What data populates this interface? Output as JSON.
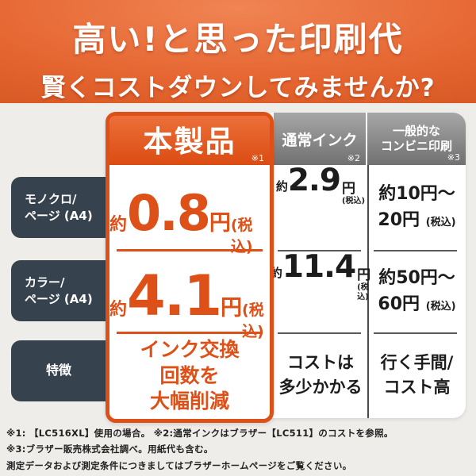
{
  "banner": {
    "line1": "高い!と思った印刷代",
    "line2_prefix": "賢く",
    "line2_emphasis": "コストダウン",
    "line2_suffix": "してみませんか?"
  },
  "table": {
    "columns": [
      {
        "label": "本製品",
        "note": "※1"
      },
      {
        "label": "通常インク",
        "note": "※2"
      },
      {
        "label_line1": "一般的な",
        "label_line2": "コンビニ印刷",
        "note": "※3"
      }
    ],
    "row_labels": {
      "mono": [
        "モノクロ/",
        "ページ (A4)"
      ],
      "color": [
        "カラー/",
        "ページ (A4)"
      ],
      "feature": "特徴"
    },
    "prices": {
      "mono": {
        "product": {
          "approx": "約",
          "value": "0.8",
          "unit": "円",
          "tax": "(税込)"
        },
        "ink": {
          "approx": "約",
          "value": "2.9",
          "unit": "円",
          "tax": "(税込)"
        },
        "conv": {
          "line1": "約10円〜",
          "line2": "20円",
          "tax": "(税込)"
        }
      },
      "color": {
        "product": {
          "approx": "約",
          "value": "4.1",
          "unit": "円",
          "tax": "(税込)"
        },
        "ink": {
          "approx": "約",
          "value": "11.4",
          "unit": "円",
          "tax": "(税込)"
        },
        "conv": {
          "line1": "約50円〜",
          "line2": "60円",
          "tax": "(税込)"
        }
      }
    },
    "features": {
      "product": [
        "インク交換",
        "回数を",
        "大幅削減"
      ],
      "ink": [
        "コストは",
        "多少かかる"
      ],
      "conv": [
        "行く手間/",
        "コスト高"
      ]
    }
  },
  "footnotes": [
    "※1: 【LC516XL】使用の場合。 ※2:通常インクはブラザー【LC511】のコストを参照。",
    "※3:ブラザー販売株式会社調べ。用紙代も含む。",
    "測定データおよび測定条件につきましてはブラザーホームページをご覧ください。"
  ],
  "colors": {
    "accent_orange": "#dd5018",
    "banner_orange": "#e56530",
    "label_slate": "#36434e",
    "header_gray_top": "#a6a6a6",
    "header_gray_bottom": "#717171",
    "text_black": "#1c1c1c",
    "background": "#efedea"
  }
}
